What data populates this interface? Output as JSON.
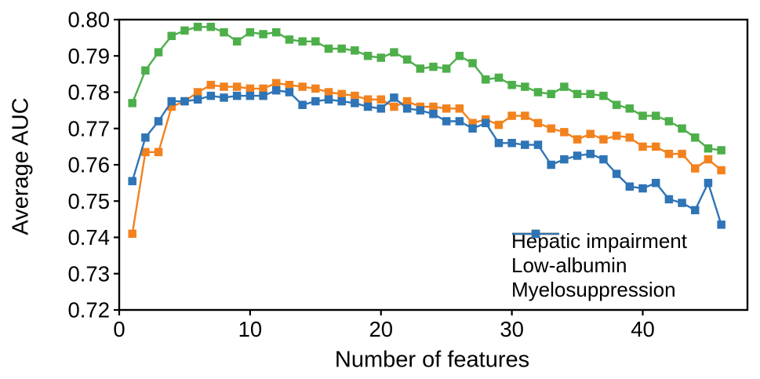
{
  "chart_data": {
    "type": "line",
    "title": "",
    "xlabel": "Number of features",
    "ylabel": "Average AUC",
    "xlim": [
      0,
      48
    ],
    "ylim": [
      0.72,
      0.8
    ],
    "x_ticks": [
      0,
      10,
      20,
      30,
      40
    ],
    "y_ticks": [
      0.8,
      0.79,
      0.78,
      0.77,
      0.76,
      0.75,
      0.74,
      0.73,
      0.72
    ],
    "grid": false,
    "legend_position": "lower-right-inside",
    "marker": "square",
    "axis_color": "#000000",
    "x": [
      1,
      2,
      3,
      4,
      5,
      6,
      7,
      8,
      9,
      10,
      11,
      12,
      13,
      14,
      15,
      16,
      17,
      18,
      19,
      20,
      21,
      22,
      23,
      24,
      25,
      26,
      27,
      28,
      29,
      30,
      31,
      32,
      33,
      34,
      35,
      36,
      37,
      38,
      39,
      40,
      41,
      42,
      43,
      44,
      45,
      46
    ],
    "series": [
      {
        "name": "Hepatic impairment",
        "color": "#4daf4a",
        "values": [
          0.777,
          0.786,
          0.791,
          0.7955,
          0.797,
          0.798,
          0.798,
          0.7965,
          0.794,
          0.7965,
          0.796,
          0.7965,
          0.7945,
          0.794,
          0.794,
          0.792,
          0.792,
          0.7915,
          0.79,
          0.7895,
          0.791,
          0.789,
          0.7865,
          0.787,
          0.7865,
          0.79,
          0.788,
          0.7835,
          0.784,
          0.782,
          0.7815,
          0.78,
          0.7795,
          0.7815,
          0.7795,
          0.7795,
          0.779,
          0.7765,
          0.7755,
          0.7735,
          0.7735,
          0.772,
          0.77,
          0.7675,
          0.7645,
          0.764
        ]
      },
      {
        "name": "Low-albumin",
        "color": "#f2821e",
        "values": [
          0.741,
          0.7635,
          0.7635,
          0.776,
          0.7775,
          0.78,
          0.782,
          0.7815,
          0.7815,
          0.781,
          0.781,
          0.7825,
          0.782,
          0.7815,
          0.781,
          0.78,
          0.7795,
          0.779,
          0.778,
          0.778,
          0.776,
          0.7775,
          0.776,
          0.776,
          0.7755,
          0.7755,
          0.7715,
          0.7725,
          0.771,
          0.7735,
          0.7735,
          0.7715,
          0.77,
          0.769,
          0.767,
          0.7685,
          0.767,
          0.768,
          0.7675,
          0.765,
          0.765,
          0.763,
          0.763,
          0.759,
          0.7615,
          0.7585
        ]
      },
      {
        "name": "Myelosuppression",
        "color": "#2e74b6",
        "values": [
          0.7555,
          0.7675,
          0.772,
          0.7775,
          0.7775,
          0.778,
          0.779,
          0.7785,
          0.779,
          0.779,
          0.779,
          0.7805,
          0.78,
          0.7765,
          0.7775,
          0.778,
          0.7775,
          0.777,
          0.776,
          0.7755,
          0.7785,
          0.7755,
          0.775,
          0.774,
          0.772,
          0.772,
          0.77,
          0.7715,
          0.766,
          0.766,
          0.7655,
          0.7655,
          0.76,
          0.7615,
          0.7625,
          0.763,
          0.7615,
          0.7575,
          0.754,
          0.7535,
          0.755,
          0.7505,
          0.7495,
          0.7475,
          0.755,
          0.7435
        ]
      }
    ]
  }
}
